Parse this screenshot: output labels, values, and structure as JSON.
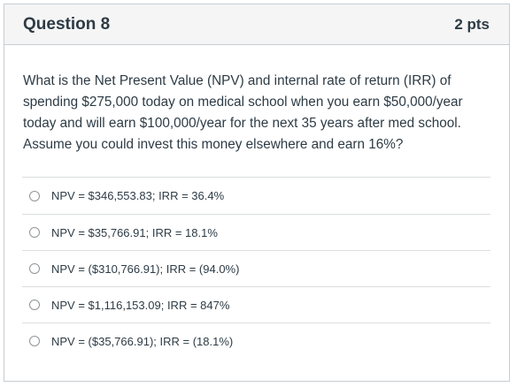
{
  "question": {
    "title": "Question 8",
    "points": "2 pts",
    "text": "What is the Net Present Value (NPV) and internal rate of return (IRR) of spending $275,000 today on medical school when you earn $50,000/year today and will earn $100,000/year for the next 35 years after med school.   Assume you could invest this money elsewhere and earn 16%?"
  },
  "answers": [
    {
      "label": "NPV = $346,553.83; IRR = 36.4%"
    },
    {
      "label": "NPV = $35,766.91; IRR = 18.1%"
    },
    {
      "label": "NPV = ($310,766.91); IRR = (94.0%)"
    },
    {
      "label": "NPV = $1,116,153.09; IRR = 847%"
    },
    {
      "label": "NPV = ($35,766.91); IRR = (18.1%)"
    }
  ],
  "colors": {
    "text": "#2d3b45",
    "header_bg": "#f5f5f5",
    "border": "#c7cdd1"
  }
}
